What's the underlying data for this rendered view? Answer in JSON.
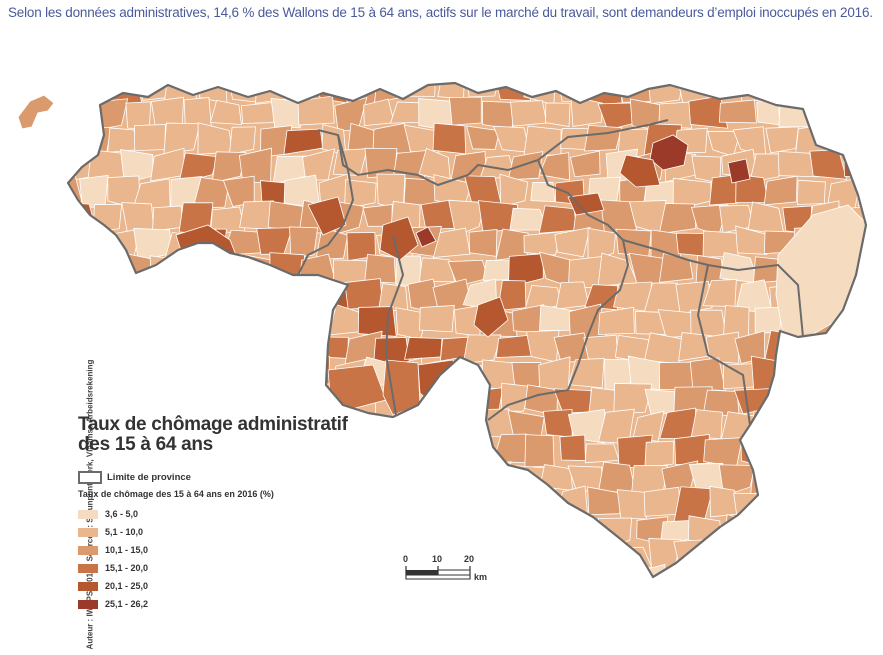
{
  "caption": "Selon les données administratives, 14,6 % des Wallons de 15 à 64 ans, actifs sur le marché du travail, sont demandeurs d’emploi inoccupés en 2016.",
  "map": {
    "title_line1": "Taux de chômage administratif",
    "title_line2": "des 15 à 64 ans",
    "province_boundary_label": "Limite de province",
    "scale_title": "Taux de chômage des 15 à 64 ans en 2016 (%)",
    "classes": [
      {
        "label": "3,6 - 5,0",
        "color": "#f5dcc0"
      },
      {
        "label": "5,1 - 10,0",
        "color": "#e9b68e"
      },
      {
        "label": "10,1 - 15,0",
        "color": "#db9a6e"
      },
      {
        "label": "15,1 - 20,0",
        "color": "#c97446"
      },
      {
        "label": "20,1 - 25,0",
        "color": "#b5582f"
      },
      {
        "label": "25,1 - 26,2",
        "color": "#9c3a2a"
      }
    ],
    "scalebar": {
      "ticks": [
        "0",
        "10",
        "20"
      ],
      "unit": "km"
    },
    "credits": "Auteur : IWEPS, 2018 ; Sources : Steunpunt Werk, Vlaamse Arbeidsrekening"
  }
}
